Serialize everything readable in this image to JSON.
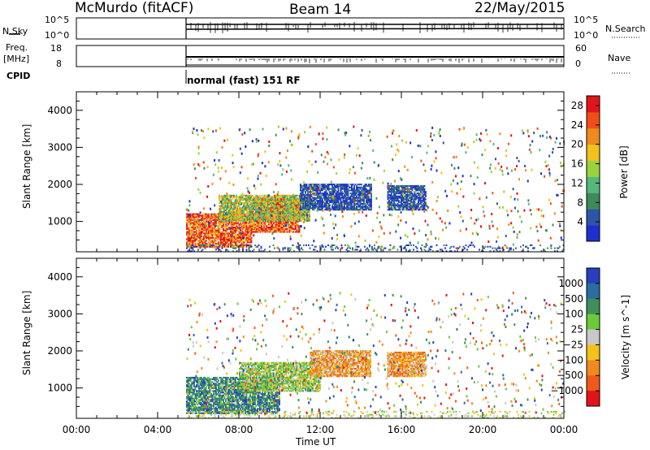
{
  "header": {
    "station": "McMurdo (fitACF)",
    "beam": "Beam 14",
    "date": "22/May/2015"
  },
  "top_panels": {
    "nsky_label": "N.Sky",
    "nsky_ticks": [
      "10^5",
      "10^0"
    ],
    "nsearch_label": "N.Search",
    "nsearch_ticks": [
      "10^5",
      "10^0"
    ],
    "freq_label_1": "Freq.",
    "freq_label_2": "[MHz]",
    "freq_ticks": [
      "18",
      "8"
    ],
    "nave_label": "Nave",
    "nave_ticks": [
      "60",
      "0"
    ],
    "cpid_label": "CPID",
    "cpid_value": "normal (fast) 151 RF"
  },
  "colors": {
    "power_scale": [
      "#1f2fcf",
      "#2e56a8",
      "#3f8a5a",
      "#53b87a",
      "#9bd13c",
      "#f2c21b",
      "#f08a1e",
      "#ef4e1a",
      "#e2141b"
    ],
    "velocity_scale": [
      "#2a3fc0",
      "#2a6da0",
      "#3f8f5a",
      "#6dc93a",
      "#c8c8c8",
      "#f2c21b",
      "#f08a1e",
      "#ef5a1a",
      "#e2141b"
    ]
  },
  "chart_data": [
    {
      "type": "heatmap",
      "title": "",
      "xlabel": "Time UT",
      "ylabel": "Slant Range [km]",
      "xlim": [
        "00:00",
        "24:00"
      ],
      "ylim": [
        180,
        4500
      ],
      "x_ticks": [
        "00:00",
        "04:00",
        "08:00",
        "12:00",
        "16:00",
        "20:00",
        "00:00"
      ],
      "y_ticks": [
        1000,
        2000,
        3000,
        4000
      ],
      "colorbar": {
        "label": "Power [dB]",
        "ticks": [
          4,
          8,
          12,
          16,
          20,
          24,
          28
        ],
        "range": [
          0,
          30
        ]
      },
      "regions": [
        {
          "t_start": 5.4,
          "t_end": 8.6,
          "r_min": 300,
          "r_max": 1200,
          "level": "high"
        },
        {
          "t_start": 8.6,
          "t_end": 11.0,
          "r_min": 700,
          "r_max": 1600,
          "level": "high"
        },
        {
          "t_start": 7.0,
          "t_end": 11.5,
          "r_min": 1000,
          "r_max": 1700,
          "level": "mid"
        },
        {
          "t_start": 11.0,
          "t_end": 14.5,
          "r_min": 1300,
          "r_max": 2000,
          "level": "low"
        },
        {
          "t_start": 15.3,
          "t_end": 17.2,
          "r_min": 1300,
          "r_max": 1950,
          "level": "low"
        },
        {
          "t_start": 5.4,
          "t_end": 24.0,
          "r_min": 180,
          "r_max": 350,
          "level": "ground"
        }
      ]
    },
    {
      "type": "heatmap",
      "title": "",
      "xlabel": "Time UT",
      "ylabel": "Slant Range [km]",
      "xlim": [
        "00:00",
        "24:00"
      ],
      "ylim": [
        180,
        4500
      ],
      "x_ticks": [
        "00:00",
        "04:00",
        "08:00",
        "12:00",
        "16:00",
        "20:00",
        "00:00"
      ],
      "y_ticks": [
        1000,
        2000,
        3000,
        4000
      ],
      "colorbar": {
        "label": "Velocity [m s^-1]",
        "ticks": [
          1000,
          500,
          100,
          25,
          -25,
          -100,
          -500,
          -1000
        ]
      },
      "regions": [
        {
          "t_start": 5.4,
          "t_end": 10.0,
          "r_min": 300,
          "r_max": 1300,
          "level": "toward"
        },
        {
          "t_start": 8.0,
          "t_end": 12.0,
          "r_min": 900,
          "r_max": 1700,
          "level": "slow-toward"
        },
        {
          "t_start": 11.5,
          "t_end": 14.5,
          "r_min": 1300,
          "r_max": 2000,
          "level": "away"
        },
        {
          "t_start": 15.3,
          "t_end": 17.2,
          "r_min": 1300,
          "r_max": 1950,
          "level": "away"
        },
        {
          "t_start": 5.4,
          "t_end": 24.0,
          "r_min": 180,
          "r_max": 350,
          "level": "ground"
        }
      ]
    }
  ]
}
